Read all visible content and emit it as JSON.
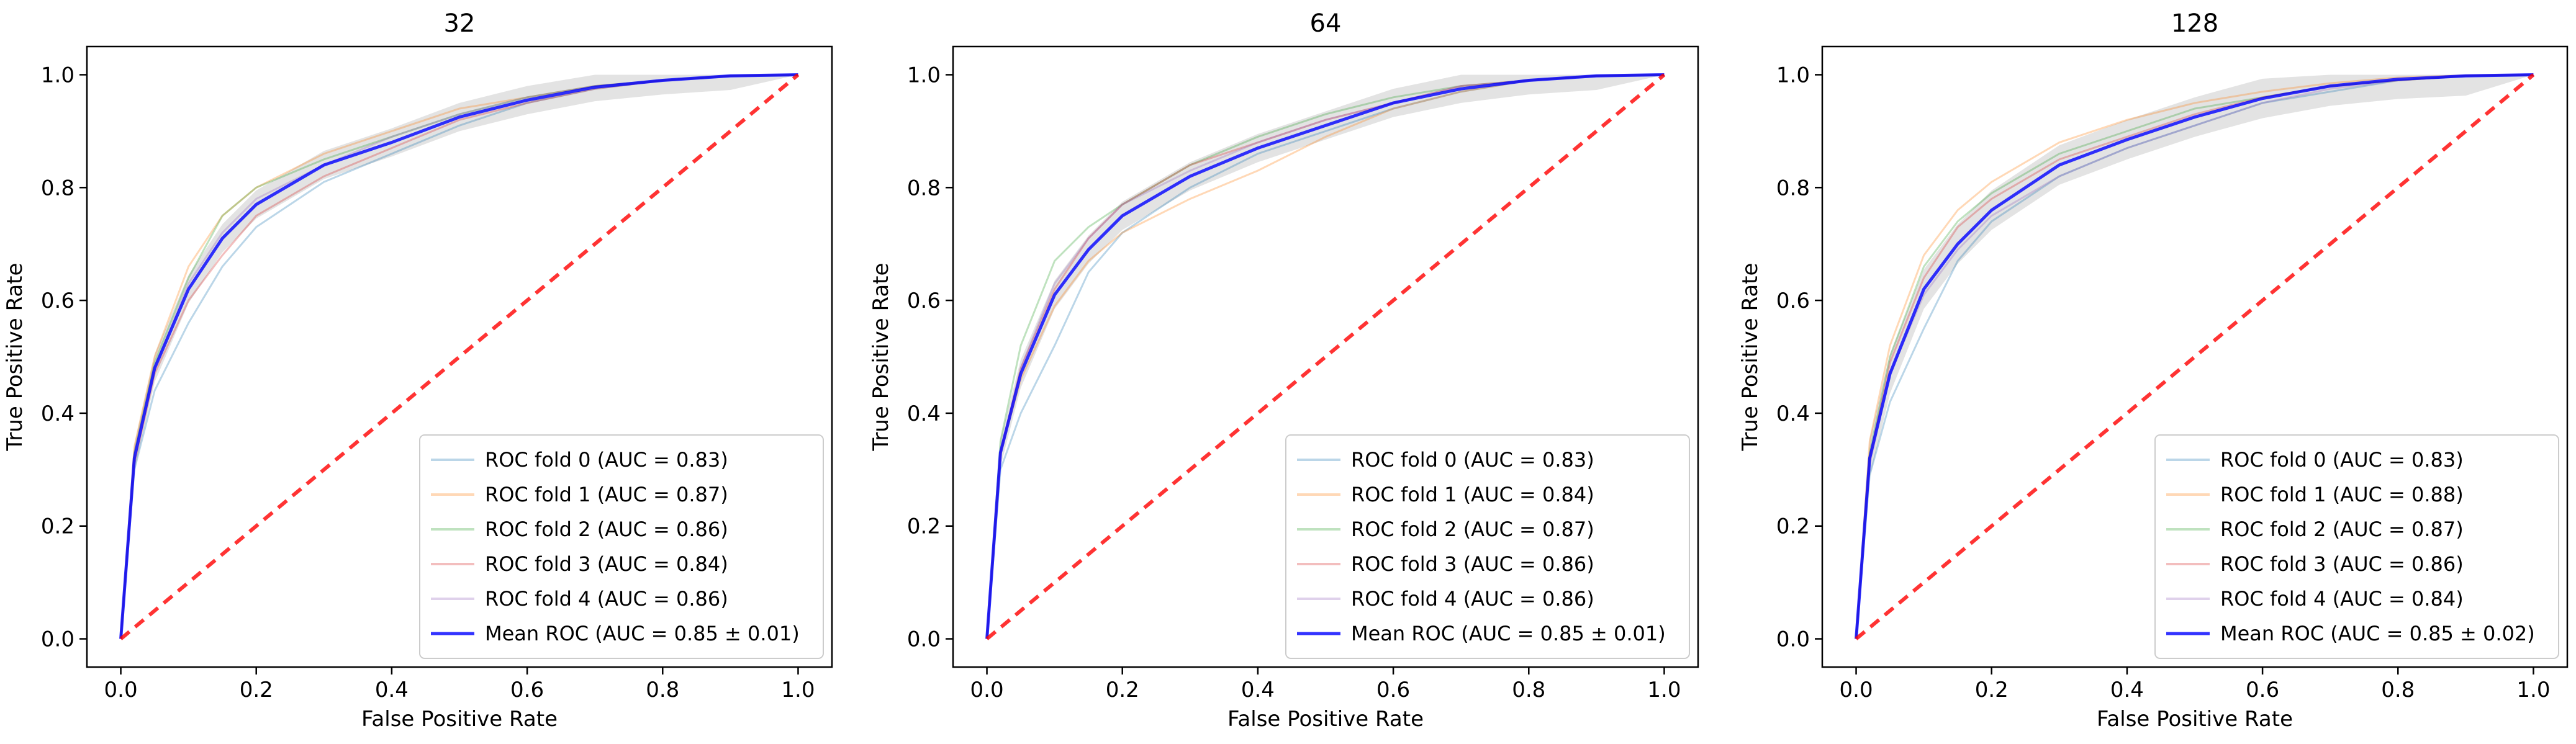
{
  "chart_data": [
    {
      "type": "line",
      "title": "32",
      "xlabel": "False Positive Rate",
      "ylabel": "True Positive Rate",
      "xlim": [
        -0.05,
        1.05
      ],
      "ylim": [
        -0.05,
        1.05
      ],
      "xticks": [
        "0.0",
        "0.2",
        "0.4",
        "0.6",
        "0.8",
        "1.0"
      ],
      "yticks": [
        "0.0",
        "0.2",
        "0.4",
        "0.6",
        "0.8",
        "1.0"
      ],
      "legend_position": "lower-right",
      "std_band": 0.025,
      "series": [
        {
          "name": "ROC fold 0 (AUC = 0.83)",
          "color": "#1f77b4",
          "x": [
            0,
            0.02,
            0.05,
            0.1,
            0.15,
            0.2,
            0.3,
            0.4,
            0.5,
            0.6,
            0.7,
            0.8,
            0.9,
            1
          ],
          "y": [
            0,
            0.3,
            0.44,
            0.56,
            0.66,
            0.73,
            0.81,
            0.86,
            0.91,
            0.95,
            0.975,
            0.99,
            0.998,
            1
          ]
        },
        {
          "name": "ROC fold 1 (AUC = 0.87)",
          "color": "#ff7f0e",
          "x": [
            0,
            0.02,
            0.05,
            0.1,
            0.15,
            0.2,
            0.3,
            0.4,
            0.5,
            0.6,
            0.7,
            0.8,
            0.9,
            1
          ],
          "y": [
            0,
            0.34,
            0.5,
            0.66,
            0.75,
            0.8,
            0.86,
            0.9,
            0.94,
            0.96,
            0.98,
            0.99,
            0.998,
            1
          ]
        },
        {
          "name": "ROC fold 2 (AUC = 0.86)",
          "color": "#2ca02c",
          "x": [
            0,
            0.02,
            0.05,
            0.1,
            0.15,
            0.2,
            0.3,
            0.4,
            0.5,
            0.6,
            0.7,
            0.8,
            0.9,
            1
          ],
          "y": [
            0,
            0.33,
            0.49,
            0.64,
            0.75,
            0.8,
            0.85,
            0.89,
            0.93,
            0.96,
            0.98,
            0.99,
            0.998,
            1
          ]
        },
        {
          "name": "ROC fold 3 (AUC = 0.84)",
          "color": "#d62728",
          "x": [
            0,
            0.02,
            0.05,
            0.1,
            0.15,
            0.2,
            0.3,
            0.4,
            0.5,
            0.6,
            0.7,
            0.8,
            0.9,
            1
          ],
          "y": [
            0,
            0.31,
            0.47,
            0.6,
            0.68,
            0.75,
            0.82,
            0.87,
            0.92,
            0.95,
            0.975,
            0.99,
            0.998,
            1
          ]
        },
        {
          "name": "ROC fold 4 (AUC = 0.86)",
          "color": "#9467bd",
          "x": [
            0,
            0.02,
            0.05,
            0.1,
            0.15,
            0.2,
            0.3,
            0.4,
            0.5,
            0.6,
            0.7,
            0.8,
            0.9,
            1
          ],
          "y": [
            0,
            0.33,
            0.48,
            0.63,
            0.72,
            0.78,
            0.84,
            0.89,
            0.93,
            0.96,
            0.98,
            0.99,
            0.998,
            1
          ]
        },
        {
          "name": "Mean ROC (AUC = 0.85 ± 0.01)",
          "color": "#0000ff",
          "mean": true,
          "x": [
            0,
            0.02,
            0.05,
            0.1,
            0.15,
            0.2,
            0.3,
            0.4,
            0.5,
            0.6,
            0.7,
            0.8,
            0.9,
            1
          ],
          "y": [
            0,
            0.32,
            0.48,
            0.62,
            0.71,
            0.77,
            0.84,
            0.88,
            0.925,
            0.955,
            0.978,
            0.99,
            0.998,
            1
          ]
        },
        {
          "name": "chance",
          "color": "#ff0000",
          "chance": true,
          "x": [
            0,
            1
          ],
          "y": [
            0,
            1
          ]
        }
      ]
    },
    {
      "type": "line",
      "title": "64",
      "xlabel": "False Positive Rate",
      "ylabel": "True Positive Rate",
      "xlim": [
        -0.05,
        1.05
      ],
      "ylim": [
        -0.05,
        1.05
      ],
      "xticks": [
        "0.0",
        "0.2",
        "0.4",
        "0.6",
        "0.8",
        "1.0"
      ],
      "yticks": [
        "0.0",
        "0.2",
        "0.4",
        "0.6",
        "0.8",
        "1.0"
      ],
      "legend_position": "lower-right",
      "std_band": 0.025,
      "series": [
        {
          "name": "ROC fold 0 (AUC = 0.83)",
          "color": "#1f77b4",
          "x": [
            0,
            0.02,
            0.05,
            0.1,
            0.15,
            0.2,
            0.3,
            0.4,
            0.5,
            0.6,
            0.7,
            0.8,
            0.9,
            1
          ],
          "y": [
            0,
            0.3,
            0.4,
            0.52,
            0.65,
            0.72,
            0.8,
            0.86,
            0.9,
            0.94,
            0.97,
            0.99,
            0.998,
            1
          ]
        },
        {
          "name": "ROC fold 1 (AUC = 0.84)",
          "color": "#ff7f0e",
          "x": [
            0,
            0.02,
            0.05,
            0.1,
            0.15,
            0.2,
            0.3,
            0.4,
            0.5,
            0.6,
            0.7,
            0.8,
            0.9,
            1
          ],
          "y": [
            0,
            0.33,
            0.46,
            0.59,
            0.67,
            0.72,
            0.78,
            0.83,
            0.89,
            0.94,
            0.97,
            0.99,
            0.998,
            1
          ]
        },
        {
          "name": "ROC fold 2 (AUC = 0.87)",
          "color": "#2ca02c",
          "x": [
            0,
            0.02,
            0.05,
            0.1,
            0.15,
            0.2,
            0.3,
            0.4,
            0.5,
            0.6,
            0.7,
            0.8,
            0.9,
            1
          ],
          "y": [
            0,
            0.35,
            0.52,
            0.67,
            0.73,
            0.77,
            0.84,
            0.89,
            0.93,
            0.96,
            0.98,
            0.99,
            0.998,
            1
          ]
        },
        {
          "name": "ROC fold 3 (AUC = 0.86)",
          "color": "#d62728",
          "x": [
            0,
            0.02,
            0.05,
            0.1,
            0.15,
            0.2,
            0.3,
            0.4,
            0.5,
            0.6,
            0.7,
            0.8,
            0.9,
            1
          ],
          "y": [
            0,
            0.33,
            0.48,
            0.62,
            0.71,
            0.77,
            0.84,
            0.88,
            0.92,
            0.95,
            0.98,
            0.99,
            0.998,
            1
          ]
        },
        {
          "name": "ROC fold 4 (AUC = 0.86)",
          "color": "#9467bd",
          "x": [
            0,
            0.02,
            0.05,
            0.1,
            0.15,
            0.2,
            0.3,
            0.4,
            0.5,
            0.6,
            0.7,
            0.8,
            0.9,
            1
          ],
          "y": [
            0,
            0.33,
            0.48,
            0.63,
            0.71,
            0.77,
            0.83,
            0.88,
            0.92,
            0.95,
            0.98,
            0.99,
            0.998,
            1
          ]
        },
        {
          "name": "Mean ROC (AUC = 0.85 ± 0.01)",
          "color": "#0000ff",
          "mean": true,
          "x": [
            0,
            0.02,
            0.05,
            0.1,
            0.15,
            0.2,
            0.3,
            0.4,
            0.5,
            0.6,
            0.7,
            0.8,
            0.9,
            1
          ],
          "y": [
            0,
            0.33,
            0.47,
            0.61,
            0.69,
            0.75,
            0.82,
            0.87,
            0.91,
            0.95,
            0.975,
            0.99,
            0.998,
            1
          ]
        },
        {
          "name": "chance",
          "color": "#ff0000",
          "chance": true,
          "x": [
            0,
            1
          ],
          "y": [
            0,
            1
          ]
        }
      ]
    },
    {
      "type": "line",
      "title": "128",
      "xlabel": "False Positive Rate",
      "ylabel": "True Positive Rate",
      "xlim": [
        -0.05,
        1.05
      ],
      "ylim": [
        -0.05,
        1.05
      ],
      "xticks": [
        "0.0",
        "0.2",
        "0.4",
        "0.6",
        "0.8",
        "1.0"
      ],
      "yticks": [
        "0.0",
        "0.2",
        "0.4",
        "0.6",
        "0.8",
        "1.0"
      ],
      "legend_position": "lower-right",
      "std_band": 0.035,
      "series": [
        {
          "name": "ROC fold 0 (AUC = 0.83)",
          "color": "#1f77b4",
          "x": [
            0,
            0.02,
            0.05,
            0.1,
            0.15,
            0.2,
            0.3,
            0.4,
            0.5,
            0.6,
            0.7,
            0.8,
            0.9,
            1
          ],
          "y": [
            0,
            0.29,
            0.42,
            0.55,
            0.67,
            0.74,
            0.82,
            0.87,
            0.91,
            0.95,
            0.97,
            0.99,
            0.998,
            1
          ]
        },
        {
          "name": "ROC fold 1 (AUC = 0.88)",
          "color": "#ff7f0e",
          "x": [
            0,
            0.02,
            0.05,
            0.1,
            0.15,
            0.2,
            0.3,
            0.4,
            0.5,
            0.6,
            0.7,
            0.8,
            0.9,
            1
          ],
          "y": [
            0,
            0.35,
            0.52,
            0.68,
            0.76,
            0.81,
            0.88,
            0.92,
            0.95,
            0.97,
            0.985,
            0.995,
            0.999,
            1
          ]
        },
        {
          "name": "ROC fold 2 (AUC = 0.87)",
          "color": "#2ca02c",
          "x": [
            0,
            0.02,
            0.05,
            0.1,
            0.15,
            0.2,
            0.3,
            0.4,
            0.5,
            0.6,
            0.7,
            0.8,
            0.9,
            1
          ],
          "y": [
            0,
            0.33,
            0.5,
            0.66,
            0.74,
            0.79,
            0.86,
            0.9,
            0.94,
            0.96,
            0.98,
            0.99,
            0.998,
            1
          ]
        },
        {
          "name": "ROC fold 3 (AUC = 0.86)",
          "color": "#d62728",
          "x": [
            0,
            0.02,
            0.05,
            0.1,
            0.15,
            0.2,
            0.3,
            0.4,
            0.5,
            0.6,
            0.7,
            0.8,
            0.9,
            1
          ],
          "y": [
            0,
            0.32,
            0.49,
            0.64,
            0.73,
            0.78,
            0.85,
            0.89,
            0.93,
            0.96,
            0.98,
            0.99,
            0.998,
            1
          ]
        },
        {
          "name": "ROC fold 4 (AUC = 0.84)",
          "color": "#9467bd",
          "x": [
            0,
            0.02,
            0.05,
            0.1,
            0.15,
            0.2,
            0.3,
            0.4,
            0.5,
            0.6,
            0.7,
            0.8,
            0.9,
            1
          ],
          "y": [
            0,
            0.31,
            0.47,
            0.61,
            0.69,
            0.75,
            0.82,
            0.87,
            0.91,
            0.95,
            0.975,
            0.99,
            0.998,
            1
          ]
        },
        {
          "name": "Mean ROC (AUC = 0.85 ± 0.02)",
          "color": "#0000ff",
          "mean": true,
          "x": [
            0,
            0.02,
            0.05,
            0.1,
            0.15,
            0.2,
            0.3,
            0.4,
            0.5,
            0.6,
            0.7,
            0.8,
            0.9,
            1
          ],
          "y": [
            0,
            0.32,
            0.47,
            0.62,
            0.7,
            0.76,
            0.84,
            0.885,
            0.925,
            0.958,
            0.98,
            0.992,
            0.998,
            1
          ]
        },
        {
          "name": "chance",
          "color": "#ff0000",
          "chance": true,
          "x": [
            0,
            1
          ],
          "y": [
            0,
            1
          ]
        }
      ]
    }
  ]
}
